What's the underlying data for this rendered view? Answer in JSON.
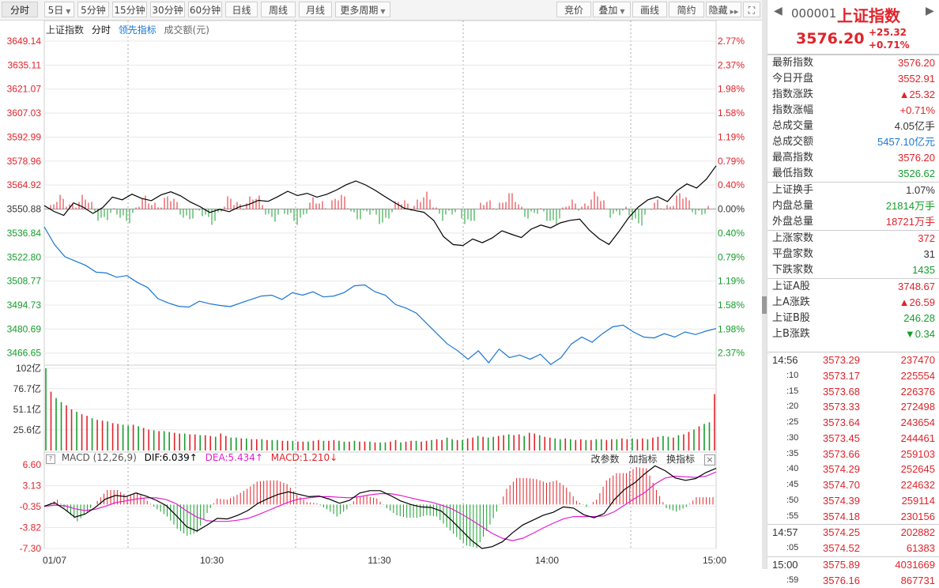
{
  "toolbar": {
    "left": [
      {
        "label": "分时",
        "active": true,
        "dropdown": false
      },
      {
        "label": "5日",
        "dropdown": true
      },
      {
        "label": "5分钟",
        "dropdown": false
      },
      {
        "label": "15分钟",
        "dropdown": false
      },
      {
        "label": "30分钟",
        "dropdown": false
      },
      {
        "label": "60分钟",
        "dropdown": false
      },
      {
        "label": "日线",
        "dropdown": false
      },
      {
        "label": "周线",
        "dropdown": false
      },
      {
        "label": "月线",
        "dropdown": false
      },
      {
        "label": "更多周期",
        "dropdown": true
      }
    ],
    "right": [
      {
        "label": "竞价",
        "dropdown": false
      },
      {
        "label": "叠加",
        "dropdown": true
      },
      {
        "label": "画线",
        "dropdown": false
      },
      {
        "label": "简约",
        "dropdown": false
      },
      {
        "label": "隐藏",
        "dropdown": false,
        "icon": "double-chevron-right-icon"
      }
    ],
    "fullscreen_icon": "fullscreen-icon"
  },
  "legend": {
    "name": "上证指数",
    "mode": "分时",
    "leading": "领先指标",
    "amount": "成交额(元)"
  },
  "colors": {
    "up": "#e0232a",
    "down": "#169d2c",
    "price_line": "#000000",
    "leading_line": "#1976d2",
    "dif": "#000000",
    "dea": "#e020d0",
    "grid": "#e8e8e8"
  },
  "chart_data": [
    {
      "type": "line",
      "title": "上证指数 分时",
      "y_labels_left": [
        "3649.14",
        "3635.11",
        "3621.07",
        "3607.03",
        "3592.99",
        "3578.96",
        "3564.92",
        "3550.88",
        "3536.84",
        "3522.80",
        "3508.77",
        "3494.73",
        "3480.69",
        "3466.65"
      ],
      "y_labels_right": [
        "2.77%",
        "2.37%",
        "1.98%",
        "1.58%",
        "1.19%",
        "0.79%",
        "0.40%",
        "0.00%",
        "0.40%",
        "0.79%",
        "1.19%",
        "1.58%",
        "1.98%",
        "2.37%"
      ],
      "ylim": [
        3459.6,
        3649.14
      ],
      "prev_close": 3550.88,
      "x_labels": [
        "01/07",
        "10:30",
        "11:30",
        "14:00",
        "15:00"
      ],
      "series": [
        {
          "name": "上证指数",
          "values": [
            3552.9,
            3549.5,
            3547.2,
            3554.5,
            3552.0,
            3548.3,
            3551.8,
            3557.9,
            3556.3,
            3559.6,
            3557.1,
            3555.8,
            3559.2,
            3561.0,
            3558.6,
            3555.0,
            3552.3,
            3548.9,
            3550.7,
            3549.4,
            3552.1,
            3553.6,
            3556.0,
            3555.4,
            3558.2,
            3561.3,
            3558.8,
            3560.1,
            3557.9,
            3559.5,
            3562.0,
            3565.1,
            3567.3,
            3565.0,
            3561.8,
            3558.1,
            3554.6,
            3551.3,
            3550.1,
            3549.0,
            3544.2,
            3534.8,
            3530.1,
            3529.6,
            3533.4,
            3531.2,
            3534.0,
            3538.2,
            3536.1,
            3534.2,
            3539.1,
            3541.5,
            3539.9,
            3542.8,
            3544.3,
            3545.0,
            3538.4,
            3533.5,
            3530.2,
            3537.6,
            3545.7,
            3552.0,
            3556.3,
            3558.1,
            3555.3,
            3561.7,
            3565.6,
            3563.2,
            3568.4,
            3576.2
          ]
        },
        {
          "name": "领先指标",
          "values": [
            3540.5,
            3530.0,
            3523.0,
            3520.5,
            3518.0,
            3514.0,
            3513.5,
            3511.0,
            3512.0,
            3508.0,
            3505.0,
            3498.5,
            3496.0,
            3494.0,
            3493.6,
            3497.0,
            3495.5,
            3494.5,
            3493.8,
            3496.0,
            3498.0,
            3500.0,
            3500.5,
            3498.0,
            3502.0,
            3500.5,
            3502.5,
            3499.5,
            3500.0,
            3502.0,
            3506.0,
            3506.5,
            3502.5,
            3500.5,
            3495.0,
            3493.0,
            3490.0,
            3484.0,
            3478.0,
            3472.0,
            3468.0,
            3463.0,
            3468.0,
            3461.0,
            3469.0,
            3464.0,
            3465.5,
            3463.0,
            3466.0,
            3460.0,
            3464.0,
            3472.0,
            3476.0,
            3473.0,
            3478.0,
            3482.0,
            3483.0,
            3479.0,
            3476.0,
            3475.5,
            3478.0,
            3476.0,
            3479.0,
            3477.5,
            3479.5,
            3481.0
          ]
        }
      ]
    },
    {
      "type": "bar",
      "title": "成交额(元)",
      "y_labels": [
        "102亿",
        "76.7亿",
        "51.1亿",
        "25.6亿"
      ],
      "ylim": [
        0,
        102
      ],
      "values": [
        102,
        73,
        65,
        60,
        56,
        51,
        48,
        45,
        43,
        40,
        38,
        37,
        36,
        34,
        33,
        32,
        31,
        32,
        30,
        28,
        26,
        25,
        24,
        24,
        23,
        22,
        21,
        21,
        20,
        20,
        19,
        19,
        18,
        17,
        21,
        18,
        16,
        16,
        15,
        15,
        14,
        14,
        14,
        13,
        13,
        13,
        12,
        12,
        12,
        11,
        11,
        11,
        12,
        13,
        12,
        12,
        13,
        12,
        11,
        11,
        12,
        11,
        11,
        11,
        10,
        10,
        10,
        11,
        13,
        10,
        11,
        12,
        12,
        11,
        12,
        13,
        14,
        13,
        16,
        14,
        13,
        13,
        15,
        16,
        18,
        17,
        16,
        17,
        18,
        19,
        20,
        19,
        20,
        18,
        22,
        21,
        19,
        17,
        16,
        15,
        14,
        15,
        14,
        13,
        14,
        13,
        13,
        14,
        14,
        13,
        14,
        14,
        15,
        14,
        15,
        14,
        15,
        14,
        16,
        17,
        18,
        17,
        16,
        19,
        20,
        23,
        26,
        30,
        33,
        35,
        70
      ]
    },
    {
      "type": "line",
      "title": "MACD (12,26,9)",
      "y_labels": [
        "6.60",
        "3.13",
        "-0.35",
        "-3.82",
        "-7.30"
      ],
      "ylim": [
        -7.3,
        6.6
      ],
      "series": [
        {
          "name": "DIF",
          "values": [
            -0.3,
            0.3,
            -0.8,
            -2.1,
            -1.6,
            -0.5,
            0.9,
            1.5,
            1.3,
            1.9,
            1.4,
            0.7,
            -0.2,
            -1.9,
            -3.7,
            -4.4,
            -3.4,
            -2.3,
            -2.4,
            -1.8,
            -1.0,
            0.2,
            1.0,
            1.7,
            2.1,
            1.7,
            1.3,
            1.4,
            0.9,
            0.2,
            0.7,
            1.9,
            2.3,
            2.3,
            1.5,
            0.6,
            0.0,
            -0.4,
            -0.5,
            -1.1,
            -2.6,
            -4.3,
            -6.0,
            -7.3,
            -7.0,
            -6.2,
            -4.7,
            -3.4,
            -2.6,
            -1.8,
            -1.3,
            -0.4,
            -0.6,
            -1.7,
            -2.2,
            -1.5,
            0.8,
            2.5,
            3.6,
            5.1,
            6.4,
            5.6,
            4.4,
            4.0,
            4.3,
            5.3,
            6.0
          ]
        },
        {
          "name": "DEA",
          "values": [
            -0.3,
            -0.1,
            -0.2,
            -0.7,
            -1.0,
            -0.8,
            -0.3,
            0.3,
            0.6,
            0.9,
            1.1,
            1.1,
            0.8,
            0.1,
            -1.1,
            -2.1,
            -2.7,
            -2.8,
            -2.8,
            -2.6,
            -2.3,
            -1.7,
            -1.0,
            -0.3,
            0.4,
            0.9,
            1.1,
            1.3,
            1.3,
            1.2,
            1.1,
            1.3,
            1.6,
            1.8,
            1.8,
            1.5,
            1.1,
            0.7,
            0.4,
            -0.1,
            -0.7,
            -1.6,
            -2.6,
            -3.7,
            -4.8,
            -5.6,
            -6.0,
            -5.6,
            -4.8,
            -3.9,
            -3.1,
            -2.4,
            -2.0,
            -2.0,
            -2.0,
            -1.9,
            -1.2,
            -0.1,
            1.0,
            2.0,
            3.4,
            4.4,
            4.7,
            4.6,
            4.5,
            4.7,
            5.4
          ]
        }
      ],
      "histogram": [
        0.0,
        0.8,
        -1.2,
        -2.8,
        -1.2,
        0.6,
        2.4,
        2.4,
        1.4,
        2.0,
        0.6,
        -0.8,
        -2.0,
        -4.0,
        -5.2,
        -4.6,
        -1.4,
        1.0,
        0.8,
        1.6,
        2.6,
        3.8,
        4.0,
        4.0,
        3.4,
        1.6,
        0.4,
        0.2,
        -0.8,
        -2.0,
        -0.8,
        1.2,
        1.4,
        1.0,
        -0.6,
        -1.8,
        -2.2,
        -2.2,
        -1.8,
        -2.0,
        -3.8,
        -5.4,
        -6.8,
        -7.2,
        -4.4,
        -1.2,
        2.6,
        4.4,
        4.4,
        4.2,
        3.6,
        4.0,
        2.8,
        0.6,
        -0.4,
        0.8,
        4.0,
        5.2,
        5.2,
        6.2,
        6.0,
        2.4,
        -0.6,
        -1.2,
        -0.4,
        1.2,
        1.2
      ]
    }
  ],
  "macd_head": {
    "label": "MACD (12,26,9)",
    "dif": "DIF:6.039↑",
    "dea": "DEA:5.434↑",
    "macd": "MACD:1.210↓",
    "btn_params": "改参数",
    "btn_add": "加指标",
    "btn_switch": "换指标",
    "close_icon": "close-icon",
    "small_icon": "help-icon"
  },
  "panel": {
    "code": "000001",
    "name": "上证指数",
    "price": "3576.20",
    "change": "+25.32",
    "pct": "+0.71%",
    "fields": [
      {
        "k": "最新指数",
        "v": "3576.20",
        "c": "red"
      },
      {
        "k": "今日开盘",
        "v": "3552.91",
        "c": "red"
      },
      {
        "k": "指数涨跌",
        "v": "▲25.32",
        "c": "red"
      },
      {
        "k": "指数涨幅",
        "v": "+0.71%",
        "c": "red"
      },
      {
        "k": "总成交量",
        "v": "4.05亿手",
        "c": "dark"
      },
      {
        "k": "总成交额",
        "v": "5457.10亿元",
        "c": "blue"
      },
      {
        "k": "最高指数",
        "v": "3576.20",
        "c": "red"
      },
      {
        "k": "最低指数",
        "v": "3526.62",
        "c": "green"
      }
    ],
    "fields2": [
      {
        "k": "上证换手",
        "v": "1.07%",
        "c": "dark"
      },
      {
        "k": "内盘总量",
        "v": "21814万手",
        "c": "green"
      },
      {
        "k": "外盘总量",
        "v": "18721万手",
        "c": "red"
      }
    ],
    "fields3": [
      {
        "k": "上涨家数",
        "v": "372",
        "c": "red"
      },
      {
        "k": "平盘家数",
        "v": "31",
        "c": "dark"
      },
      {
        "k": "下跌家数",
        "v": "1435",
        "c": "green"
      }
    ],
    "fields4": [
      {
        "k": "上证A股",
        "v": "3748.67",
        "c": "red"
      },
      {
        "k": "上A涨跌",
        "v": "▲26.59",
        "c": "red"
      },
      {
        "k": "上证B股",
        "v": "246.28",
        "c": "green"
      },
      {
        "k": "上B涨跌",
        "v": "▼0.34",
        "c": "green"
      }
    ],
    "ticks": [
      {
        "t": "14:56",
        "p": "3573.29",
        "v": "237470",
        "sub": false
      },
      {
        "t": ":10",
        "p": "3573.17",
        "v": "225554",
        "sub": true
      },
      {
        "t": ":15",
        "p": "3573.68",
        "v": "226376",
        "sub": true
      },
      {
        "t": ":20",
        "p": "3573.33",
        "v": "272498",
        "sub": true
      },
      {
        "t": ":25",
        "p": "3573.64",
        "v": "243654",
        "sub": true
      },
      {
        "t": ":30",
        "p": "3573.45",
        "v": "244461",
        "sub": true
      },
      {
        "t": ":35",
        "p": "3573.66",
        "v": "259103",
        "sub": true
      },
      {
        "t": ":40",
        "p": "3574.29",
        "v": "252645",
        "sub": true
      },
      {
        "t": ":45",
        "p": "3574.70",
        "v": "224632",
        "sub": true
      },
      {
        "t": ":50",
        "p": "3574.39",
        "v": "259114",
        "sub": true
      },
      {
        "t": ":55",
        "p": "3574.18",
        "v": "230156",
        "sub": true
      },
      {
        "t": "14:57",
        "p": "3574.25",
        "v": "202882",
        "sub": false
      },
      {
        "t": ":05",
        "p": "3574.52",
        "v": "61383",
        "sub": true
      },
      {
        "t": "15:00",
        "p": "3575.89",
        "v": "4031669",
        "sub": false
      },
      {
        "t": ":59",
        "p": "3576.16",
        "v": "867731",
        "sub": true
      }
    ]
  }
}
